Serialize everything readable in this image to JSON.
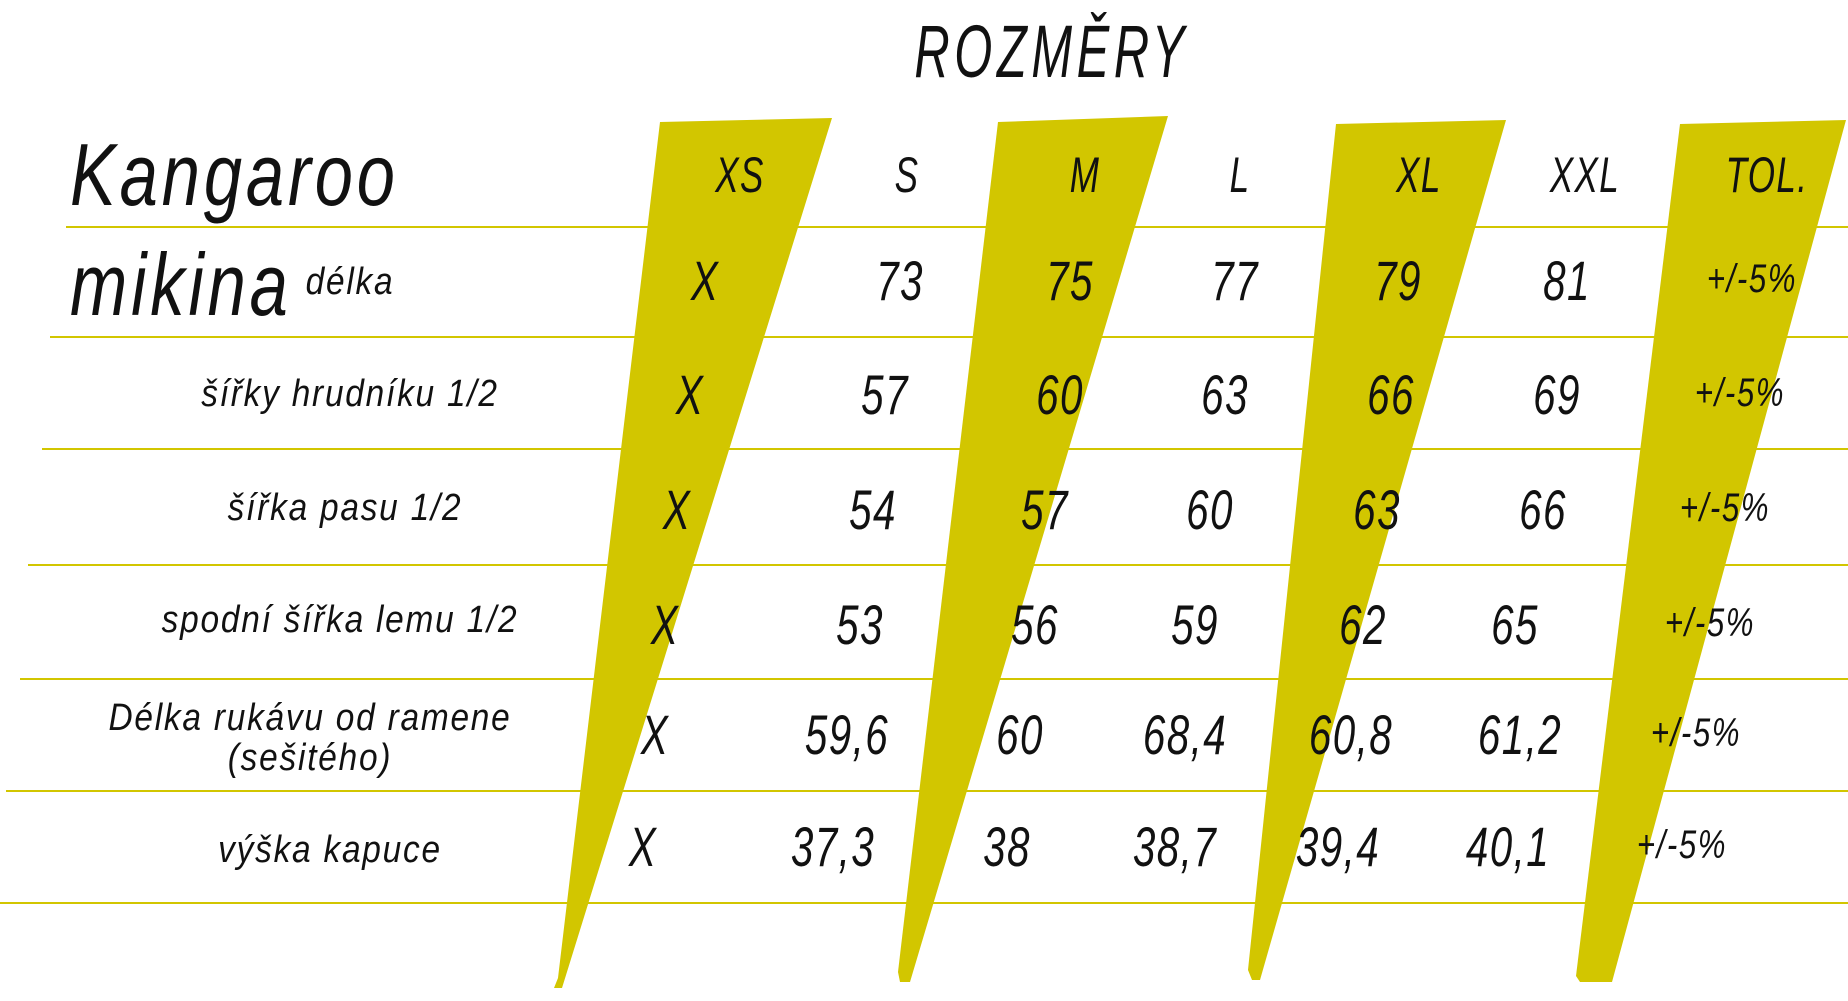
{
  "title": "ROZMĚRY",
  "product": "Kangaroo mikina",
  "accent_color": "#d2c600",
  "size_headers": [
    "XS",
    "S",
    "M",
    "L",
    "XL",
    "XXL",
    "TOL."
  ],
  "rows": [
    {
      "label": "délka",
      "values": [
        "X",
        "73",
        "75",
        "77",
        "79",
        "81",
        "+/-5%"
      ]
    },
    {
      "label": "šířky hrudníku 1/2",
      "values": [
        "X",
        "57",
        "60",
        "63",
        "66",
        "69",
        "+/-5%"
      ]
    },
    {
      "label": "šířka pasu 1/2",
      "values": [
        "X",
        "54",
        "57",
        "60",
        "63",
        "66",
        "+/-5%"
      ]
    },
    {
      "label": "spodní šířka lemu 1/2",
      "values": [
        "X",
        "53",
        "56",
        "59",
        "62",
        "65",
        "+/-5%"
      ]
    },
    {
      "label": "Délka rukávu od ramene (sešitého)",
      "values": [
        "X",
        "59,6",
        "60",
        "68,4",
        "60,8",
        "61,2",
        "+/-5%"
      ]
    },
    {
      "label": "výška kapuce",
      "values": [
        "X",
        "37,3",
        "38",
        "38,7",
        "39,4",
        "40,1",
        "+/-5%"
      ]
    }
  ]
}
